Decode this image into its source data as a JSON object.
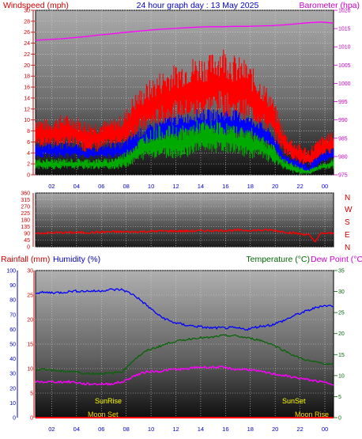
{
  "header": {
    "left_label": "Windspeed (mph)",
    "title": "24 hour graph day : 13 May 2025",
    "right_label": "Barometer (hpa)"
  },
  "colors": {
    "gust": "#ff0000",
    "avg_speed": "#0000ff",
    "green_series": "#00aa00",
    "barometer": "#ff00ff",
    "direction": "#ff0000",
    "humidity": "#0000ff",
    "temperature": "#006600",
    "dewpoint": "#ff00ff",
    "label_red": "#cc0000",
    "label_green": "#006600",
    "label_blue": "#0000cc",
    "sun_text": "#ffff00",
    "moon_text": "#ffd700"
  },
  "direction_labels": [
    "N",
    "W",
    "S",
    "E",
    "N"
  ],
  "bottom_header": {
    "rainfall": "Rainfall (mm)",
    "humidity": "Humidity (%)",
    "temperature": "Temperature (°C)",
    "dewpoint": "Dew Point (°C)"
  },
  "events": {
    "sunrise": "SunRise",
    "sunset": "SunSet",
    "moonset": "Moon Set",
    "moonrise": "Moon Rise"
  },
  "chart_data": [
    {
      "type": "line",
      "name": "wind-barometer",
      "x_tick_labels": [
        "02",
        "04",
        "06",
        "08",
        "10",
        "12",
        "14",
        "16",
        "18",
        "20",
        "22",
        "00"
      ],
      "ylim_left": [
        0,
        30
      ],
      "yticks_left": [
        0,
        2,
        4,
        6,
        8,
        10,
        12,
        14,
        16,
        18,
        20,
        22,
        24,
        26,
        28,
        30
      ],
      "ylim_right": [
        975,
        1020
      ],
      "yticks_right": [
        975,
        980,
        985,
        990,
        995,
        1000,
        1005,
        1010,
        1015,
        1020
      ],
      "hours": [
        0,
        1,
        2,
        3,
        4,
        5,
        6,
        7,
        8,
        9,
        10,
        11,
        12,
        13,
        14,
        15,
        16,
        17,
        18,
        19,
        20,
        21,
        22,
        23,
        24
      ],
      "gust_max": [
        11,
        10,
        11,
        11,
        10,
        10,
        10,
        11,
        15,
        17,
        19,
        20,
        21,
        22,
        22,
        24,
        22,
        21,
        18,
        15,
        8,
        6,
        5,
        7,
        8
      ],
      "gust_min": [
        5,
        5,
        5,
        5,
        4,
        4,
        5,
        5,
        7,
        8,
        9,
        10,
        10,
        10,
        11,
        11,
        10,
        10,
        9,
        7,
        4,
        2,
        1,
        3,
        4
      ],
      "avg_max": [
        6,
        6,
        6,
        6,
        5,
        5,
        6,
        6,
        8,
        9,
        10,
        11,
        11,
        12,
        12,
        12,
        12,
        11,
        10,
        8,
        4,
        3,
        2,
        4,
        5
      ],
      "avg_min": [
        3,
        3,
        3,
        3,
        3,
        3,
        3,
        3,
        4,
        5,
        6,
        6,
        7,
        7,
        7,
        7,
        7,
        7,
        6,
        5,
        2,
        1,
        0,
        2,
        3
      ],
      "green_max": [
        3,
        3,
        3,
        3,
        3,
        3,
        3,
        4,
        6,
        8,
        9,
        9,
        9,
        10,
        10,
        10,
        9,
        9,
        8,
        6,
        3,
        2,
        1,
        2,
        3
      ],
      "green_min": [
        1,
        1,
        1,
        1,
        1,
        1,
        1,
        1,
        2,
        3,
        3,
        3,
        3,
        4,
        4,
        4,
        4,
        3,
        3,
        2,
        1,
        0,
        0,
        1,
        1
      ],
      "barometer": [
        1011.8,
        1012.0,
        1012.2,
        1012.5,
        1012.8,
        1013.2,
        1013.5,
        1013.9,
        1014.2,
        1014.5,
        1014.8,
        1015.0,
        1015.2,
        1015.4,
        1015.5,
        1015.5,
        1015.6,
        1015.6,
        1015.7,
        1015.8,
        1016.0,
        1016.3,
        1016.6,
        1016.8,
        1016.5
      ]
    },
    {
      "type": "line",
      "name": "wind-direction",
      "yticks": [
        0,
        45,
        90,
        135,
        180,
        225,
        270,
        315,
        360
      ],
      "ylim": [
        0,
        360
      ],
      "hours": [
        0,
        2,
        4,
        6,
        8,
        10,
        12,
        14,
        16,
        18,
        19,
        20,
        20.5,
        21,
        22,
        22.5,
        23,
        24
      ],
      "direction": [
        90,
        95,
        95,
        100,
        100,
        105,
        105,
        108,
        110,
        110,
        112,
        100,
        95,
        90,
        80,
        35,
        90,
        90
      ]
    },
    {
      "type": "line",
      "name": "rain-humidity-temp",
      "ylim_rain": [
        0,
        30
      ],
      "yticks_rain": [
        0,
        5,
        10,
        15,
        20,
        25,
        30
      ],
      "ylim_humidity": [
        0,
        100
      ],
      "yticks_humidity": [
        0,
        10,
        20,
        30,
        40,
        50,
        60,
        70,
        80,
        90,
        100
      ],
      "ylim_temp": [
        0,
        35
      ],
      "yticks_temp": [
        0,
        5,
        10,
        15,
        20,
        25,
        30,
        35
      ],
      "hours": [
        0,
        1,
        2,
        3,
        4,
        5,
        6,
        7,
        8,
        9,
        10,
        11,
        12,
        13,
        14,
        15,
        16,
        17,
        18,
        19,
        20,
        21,
        22,
        23,
        24
      ],
      "humidity": [
        85,
        85,
        85,
        86,
        86,
        86,
        87,
        87,
        83,
        76,
        69,
        65,
        63,
        62,
        61,
        61,
        61,
        60,
        62,
        63,
        66,
        70,
        73,
        76,
        76
      ],
      "temperature": [
        11.5,
        11.5,
        11,
        11,
        10.5,
        10.5,
        10.5,
        11,
        14,
        16,
        17,
        18,
        18.5,
        19,
        19,
        19.5,
        19.5,
        19,
        18.5,
        17.5,
        16,
        14.5,
        13.5,
        13,
        12.5
      ],
      "dewpoint": [
        8.5,
        8.5,
        8.5,
        8.5,
        8,
        8,
        8,
        8.5,
        10,
        11,
        11,
        11.5,
        11.5,
        12,
        12,
        12,
        11.5,
        11.5,
        11,
        10.5,
        10,
        9.5,
        9,
        8.5,
        8
      ],
      "rainfall": [
        0,
        0,
        0,
        0,
        0,
        0,
        0,
        0,
        0,
        0,
        0,
        0,
        0,
        0,
        0,
        0,
        0,
        0,
        0,
        0,
        0,
        0,
        0,
        0,
        0
      ]
    }
  ]
}
